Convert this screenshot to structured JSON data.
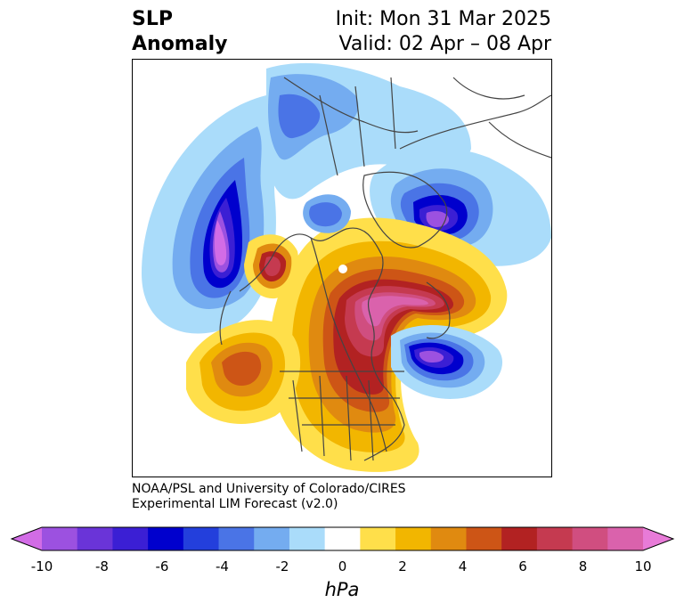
{
  "header": {
    "title_line1": "SLP",
    "title_line2": "Anomaly",
    "init": "Init: Mon 31 Mar 2025",
    "valid": "Valid: 02 Apr – 08 Apr"
  },
  "credit": {
    "line1": "NOAA/PSL and University of Colorado/CIRES",
    "line2": "Experimental LIM Forecast (v2.0)"
  },
  "colorbar": {
    "unit": "hPa",
    "ticks": [
      "-10",
      "-8",
      "-6",
      "-4",
      "-2",
      "0",
      "2",
      "4",
      "6",
      "8",
      "10"
    ],
    "colors": [
      "#d26ce6",
      "#9c51e0",
      "#6a34d8",
      "#3b1fd4",
      "#0000cd",
      "#233fdc",
      "#4a74e6",
      "#74acf0",
      "#aadcfa",
      "#ffffff",
      "#ffdf4a",
      "#f2b600",
      "#e08a10",
      "#cd5516",
      "#b22222",
      "#c53a50",
      "#d04e80",
      "#da62ac",
      "#e87bd8"
    ]
  },
  "map_features": {
    "anomaly_centers": [
      "negative-north-pacific",
      "negative-greenland-baffin",
      "negative-northwest-atlantic",
      "positive-hudson-bay-canada",
      "positive-alaska",
      "positive-east-pacific",
      "positive-siberia-arctic"
    ]
  }
}
